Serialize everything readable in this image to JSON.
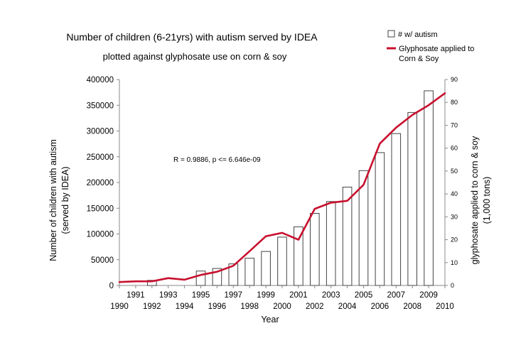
{
  "chart_data": {
    "type": "bar",
    "title": "Number of children (6-21yrs) with autism served by IDEA",
    "subtitle": "plotted against glyphosate use on corn & soy",
    "xlabel": "Year",
    "ylabel_left": [
      "Number of children with autism",
      "(served by IDEA)"
    ],
    "ylabel_right": [
      "glyphosate applied to corn & soy",
      "(1,000 tons)"
    ],
    "annotation": "R = 0.9886, p <= 6.646e-09",
    "grid": false,
    "legend_position": "top-right",
    "legend": {
      "bar_label": "# w/ autism",
      "line_label": [
        "Glyphosate applied to",
        "Corn & Soy"
      ]
    },
    "colors": {
      "bar_fill": "#ffffff",
      "bar_stroke": "#444444",
      "line": "#c8102e"
    },
    "xlim": [
      1990,
      2010
    ],
    "ylim_left": [
      0,
      400000
    ],
    "ylim_right": [
      0,
      90
    ],
    "x_ticks_upper": [
      "1991",
      "1993",
      "1995",
      "1997",
      "1999",
      "2001",
      "2003",
      "2005",
      "2007",
      "2009"
    ],
    "x_ticks_lower": [
      "1990",
      "1992",
      "1994",
      "1996",
      "1998",
      "2000",
      "2002",
      "2004",
      "2006",
      "2008",
      "2010"
    ],
    "y_ticks_left": [
      "0",
      "50000",
      "100000",
      "150000",
      "200000",
      "250000",
      "300000",
      "350000",
      "400000"
    ],
    "y_ticks_right": [
      "0",
      "10",
      "20",
      "30",
      "40",
      "50",
      "60",
      "70",
      "80",
      "90"
    ],
    "series": [
      {
        "name": "# w/ autism",
        "type": "bar",
        "axis": "left",
        "x": [
          1992,
          1995,
          1996,
          1997,
          1998,
          1999,
          2000,
          2001,
          2002,
          2003,
          2004,
          2005,
          2006,
          2007,
          2008,
          2009
        ],
        "values": [
          10000,
          28000,
          33000,
          42000,
          53000,
          66000,
          94000,
          114000,
          140000,
          163000,
          191000,
          223000,
          258000,
          295000,
          336000,
          378000
        ]
      },
      {
        "name": "Glyphosate applied to Corn & Soy",
        "type": "line",
        "axis": "right",
        "x": [
          1990,
          1991,
          1992,
          1993,
          1994,
          1995,
          1996,
          1997,
          1998,
          1999,
          2000,
          2001,
          2002,
          2003,
          2004,
          2005,
          2006,
          2007,
          2008,
          2009,
          2010
        ],
        "values": [
          1.5,
          1.8,
          1.8,
          3.2,
          2.5,
          4.6,
          6.0,
          8.6,
          15.0,
          21.5,
          23.0,
          20.0,
          33.5,
          36.2,
          37.0,
          44.0,
          62.0,
          69.0,
          74.5,
          78.8,
          84.0
        ]
      }
    ]
  }
}
